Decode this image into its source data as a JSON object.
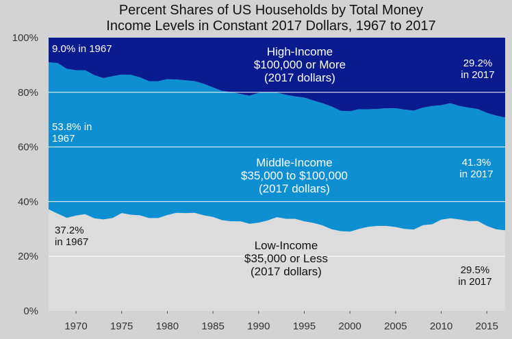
{
  "chart_data": {
    "type": "area",
    "stacked": true,
    "title": "Percent Shares of US Households by Total Money Income Levels in Constant 2017 Dollars, 1967 to 2017",
    "title_lines": [
      "Percent Shares of US Households by Total Money",
      "Income Levels in Constant 2017 Dollars, 1967 to 2017"
    ],
    "xlabel": "",
    "ylabel": "",
    "xlim": [
      1967,
      2017
    ],
    "ylim": [
      0,
      100
    ],
    "grid": true,
    "x_ticks": [
      1970,
      1975,
      1980,
      1985,
      1990,
      1995,
      2000,
      2005,
      2010,
      2015
    ],
    "y_ticks": [
      {
        "value": 0,
        "label": "0%"
      },
      {
        "value": 20,
        "label": "20%"
      },
      {
        "value": 40,
        "label": "40%"
      },
      {
        "value": 60,
        "label": "60%"
      },
      {
        "value": 80,
        "label": "80%"
      },
      {
        "value": 100,
        "label": "100%"
      }
    ],
    "x": [
      1967,
      1968,
      1969,
      1970,
      1971,
      1972,
      1973,
      1974,
      1975,
      1976,
      1977,
      1978,
      1979,
      1980,
      1981,
      1982,
      1983,
      1984,
      1985,
      1986,
      1987,
      1988,
      1989,
      1990,
      1991,
      1992,
      1993,
      1994,
      1995,
      1996,
      1997,
      1998,
      1999,
      2000,
      2001,
      2002,
      2003,
      2004,
      2005,
      2006,
      2007,
      2008,
      2009,
      2010,
      2011,
      2012,
      2013,
      2014,
      2015,
      2016,
      2017
    ],
    "series": [
      {
        "name": "Low-Income",
        "label_lines": [
          "Low-Income",
          "$35,000 or Less",
          "(2017 dollars)"
        ],
        "color": "#dcdcdc",
        "values": [
          37.2,
          35.6,
          34.1,
          34.9,
          35.4,
          33.9,
          33.5,
          34.0,
          35.8,
          35.2,
          35.0,
          34.0,
          34.0,
          35.1,
          35.9,
          35.8,
          35.9,
          35.0,
          34.4,
          33.2,
          32.8,
          32.8,
          31.9,
          32.3,
          33.1,
          34.3,
          33.7,
          33.7,
          32.8,
          32.2,
          31.3,
          29.9,
          29.2,
          29.0,
          30.0,
          30.8,
          31.1,
          31.1,
          30.7,
          30.0,
          29.8,
          31.4,
          31.7,
          33.4,
          33.9,
          33.5,
          32.9,
          32.9,
          31.1,
          29.9,
          29.5
        ]
      },
      {
        "name": "Middle-Income",
        "label_lines": [
          "Middle-Income",
          "$35,000 to $100,000",
          "(2017 dollars)"
        ],
        "color": "#0e8fd2",
        "values": [
          53.8,
          55.1,
          54.5,
          53.2,
          52.7,
          52.4,
          51.7,
          51.9,
          50.7,
          51.2,
          50.5,
          50.1,
          50.1,
          49.7,
          48.8,
          48.6,
          48.2,
          48.1,
          47.4,
          47.3,
          47.3,
          46.6,
          46.9,
          47.5,
          47.0,
          45.6,
          45.4,
          44.8,
          45.3,
          44.8,
          44.7,
          44.9,
          44.0,
          44.1,
          43.8,
          43.0,
          42.8,
          43.1,
          43.5,
          43.7,
          43.5,
          43.0,
          43.3,
          41.9,
          42.1,
          41.5,
          41.5,
          41.0,
          41.4,
          41.6,
          41.3
        ]
      },
      {
        "name": "High-Income",
        "label_lines": [
          "High-Income",
          "$100,000 or More",
          "(2017 dollars)"
        ],
        "color": "#0a1a8f",
        "values": [
          9.0,
          9.3,
          11.4,
          11.9,
          11.9,
          13.7,
          14.8,
          14.1,
          13.5,
          13.6,
          14.5,
          15.9,
          15.9,
          15.2,
          15.3,
          15.6,
          15.9,
          16.9,
          18.2,
          19.5,
          19.9,
          20.6,
          21.2,
          20.2,
          19.9,
          20.1,
          20.9,
          21.5,
          21.9,
          23.0,
          24.0,
          25.2,
          26.8,
          26.9,
          26.2,
          26.2,
          26.1,
          25.8,
          25.8,
          26.3,
          26.7,
          25.6,
          25.0,
          24.7,
          24.0,
          25.0,
          25.6,
          26.1,
          27.5,
          28.5,
          29.2
        ]
      }
    ],
    "annotations": [
      {
        "lines": [
          "9.0% in 1967"
        ],
        "series": "High-Income"
      },
      {
        "lines": [
          "29.2%",
          "in 2017"
        ],
        "series": "High-Income"
      },
      {
        "lines": [
          "53.8% in",
          "1967"
        ],
        "series": "Middle-Income"
      },
      {
        "lines": [
          "41.3%",
          "in 2017"
        ],
        "series": "Middle-Income"
      },
      {
        "lines": [
          "37.2%",
          "in 1967"
        ],
        "series": "Low-Income"
      },
      {
        "lines": [
          "29.5%",
          "in 2017"
        ],
        "series": "Low-Income"
      }
    ],
    "colors": {
      "background": "#d4d3d3",
      "plot_background": "#dcdcdc",
      "grid": "#ffffff"
    }
  }
}
